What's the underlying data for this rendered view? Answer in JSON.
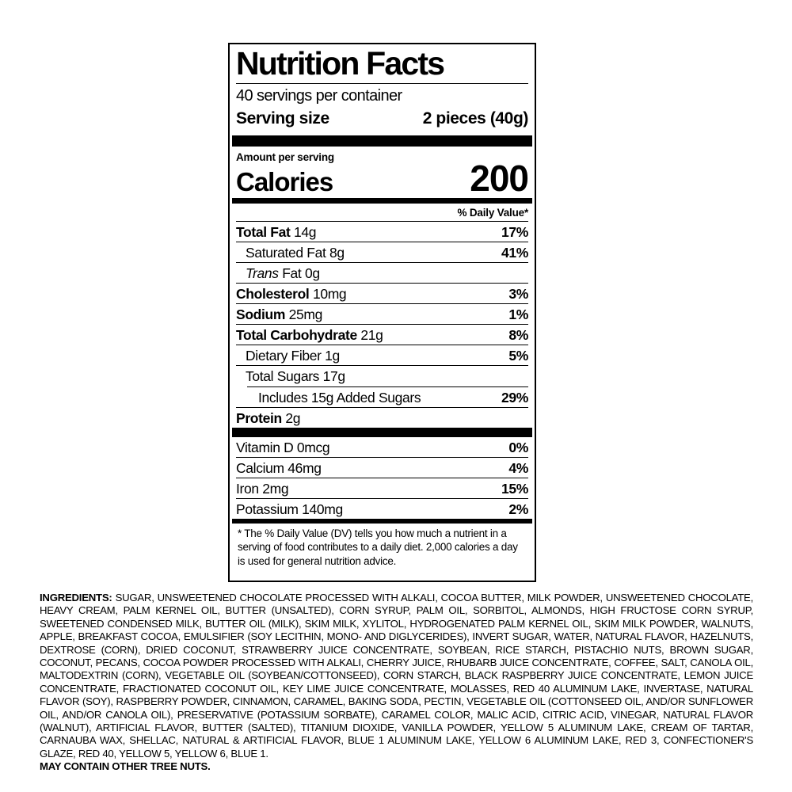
{
  "label": {
    "title": "Nutrition Facts",
    "servings_per_container": "40 servings per container",
    "serving_size_label": "Serving size",
    "serving_size_value": "2 pieces (40g)",
    "amount_per_serving": "Amount per serving",
    "calories_label": "Calories",
    "calories_value": "200",
    "daily_value_header": "% Daily Value*",
    "rows": [
      {
        "name": "Total Fat",
        "amount": "14g",
        "dv": "17%"
      },
      {
        "name": "Saturated Fat",
        "amount": "8g",
        "dv": "41%"
      },
      {
        "name_italic": "Trans",
        "name": "Fat",
        "amount": "0g",
        "dv": ""
      },
      {
        "name": "Cholesterol",
        "amount": "10mg",
        "dv": "3%"
      },
      {
        "name": "Sodium",
        "amount": "25mg",
        "dv": "1%"
      },
      {
        "name": "Total Carbohydrate",
        "amount": "21g",
        "dv": "8%"
      },
      {
        "name": "Dietary Fiber",
        "amount": "1g",
        "dv": "5%"
      },
      {
        "name": "Total Sugars",
        "amount": "17g",
        "dv": ""
      },
      {
        "name": "Includes 15g Added Sugars",
        "amount": "",
        "dv": "29%"
      },
      {
        "name": "Protein",
        "amount": "2g",
        "dv": ""
      }
    ],
    "vitamins": [
      {
        "name": "Vitamin D",
        "amount": "0mcg",
        "dv": "0%"
      },
      {
        "name": "Calcium",
        "amount": "46mg",
        "dv": "4%"
      },
      {
        "name": "Iron",
        "amount": "2mg",
        "dv": "15%"
      },
      {
        "name": "Potassium",
        "amount": "140mg",
        "dv": "2%"
      }
    ],
    "footnote": "* The % Daily Value (DV) tells you how much a nutrient in a serving of food contributes to a daily diet. 2,000 calories a day is used for general nutrition advice."
  },
  "ingredients": {
    "heading": "INGREDIENTS:",
    "text": "SUGAR, UNSWEETENED CHOCOLATE PROCESSED WITH ALKALI, COCOA BUTTER, MILK POWDER, UNSWEETENED CHOCOLATE, HEAVY CREAM, PALM KERNEL OIL, BUTTER (UNSALTED), CORN SYRUP, PALM OIL, SORBITOL, ALMONDS, HIGH FRUCTOSE CORN SYRUP, SWEETENED CONDENSED MILK, BUTTER OIL (MILK), SKIM MILK, XYLITOL, HYDROGENATED PALM KERNEL OIL, SKIM MILK POWDER, WALNUTS, APPLE, BREAKFAST COCOA, EMULSIFIER (SOY LECITHIN, MONO- AND DIGLYCERIDES), INVERT SUGAR, WATER, NATURAL FLAVOR, HAZELNUTS, DEXTROSE (CORN), DRIED COCONUT, STRAWBERRY JUICE CONCENTRATE, SOYBEAN, RICE STARCH, PISTACHIO NUTS, BROWN SUGAR, COCONUT, PECANS, COCOA POWDER PROCESSED WITH ALKALI, CHERRY JUICE, RHUBARB JUICE CONCENTRATE, COFFEE, SALT, CANOLA OIL, MALTODEXTRIN (CORN), VEGETABLE OIL (SOYBEAN/COTTONSEED), CORN STARCH, BLACK RASPBERRY JUICE CONCENTRATE, LEMON JUICE CONCENTRATE, FRACTIONATED COCONUT OIL, KEY LIME JUICE CONCENTRATE, MOLASSES, RED 40 ALUMINUM LAKE, INVERTASE, NATURAL FLAVOR (SOY), RASPBERRY POWDER, CINNAMON, CARAMEL, BAKING SODA, PECTIN, VEGETABLE OIL (COTTONSEED OIL, AND/OR SUNFLOWER OIL, AND/OR CANOLA OIL), PRESERVATIVE (POTASSIUM SORBATE), CARAMEL COLOR, MALIC ACID, CITRIC ACID, VINEGAR, NATURAL FLAVOR (WALNUT), ARTIFICIAL FLAVOR, BUTTER (SALTED), TITANIUM DIOXIDE, VANILLA POWDER, YELLOW 5 ALUMINUM LAKE, CREAM OF TARTAR, CARNAUBA WAX, SHELLAC, NATURAL & ARTIFICIAL FLAVOR, BLUE 1 ALUMINUM LAKE, YELLOW 6 ALUMINUM LAKE, RED 3, CONFECTIONER'S GLAZE, RED 40, YELLOW 5, YELLOW 6, BLUE 1.",
    "allergen": "MAY CONTAIN OTHER TREE NUTS."
  }
}
